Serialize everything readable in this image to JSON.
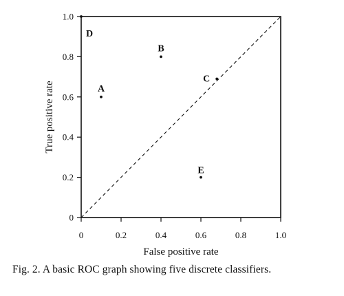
{
  "caption": "Fig. 2.  A basic ROC graph showing five discrete classifiers.",
  "chart_data": {
    "type": "scatter",
    "title": "",
    "xlabel": "False positive rate",
    "ylabel": "True positive rate",
    "xlim": [
      0,
      1
    ],
    "ylim": [
      0,
      1
    ],
    "xticks": [
      "0",
      "0.2",
      "0.4",
      "0.6",
      "0.8",
      "1.0"
    ],
    "xtick_values": [
      0,
      0.2,
      0.4,
      0.6,
      0.8,
      1.0
    ],
    "yticks": [
      "0",
      "0.2",
      "0.4",
      "0.6",
      "0.8",
      "1.0"
    ],
    "ytick_values": [
      0,
      0.2,
      0.4,
      0.6,
      0.8,
      1.0
    ],
    "grid": false,
    "reference_line": {
      "style": "dashed",
      "from": [
        0,
        0
      ],
      "to": [
        1,
        1
      ]
    },
    "points": [
      {
        "label": "A",
        "x": 0.1,
        "y": 0.6
      },
      {
        "label": "B",
        "x": 0.4,
        "y": 0.8
      },
      {
        "label": "C",
        "x": 0.68,
        "y": 0.69
      },
      {
        "label": "D",
        "x": 0.0,
        "y": 1.0
      },
      {
        "label": "E",
        "x": 0.6,
        "y": 0.2
      }
    ],
    "colors": {
      "ink": "#111111"
    }
  }
}
